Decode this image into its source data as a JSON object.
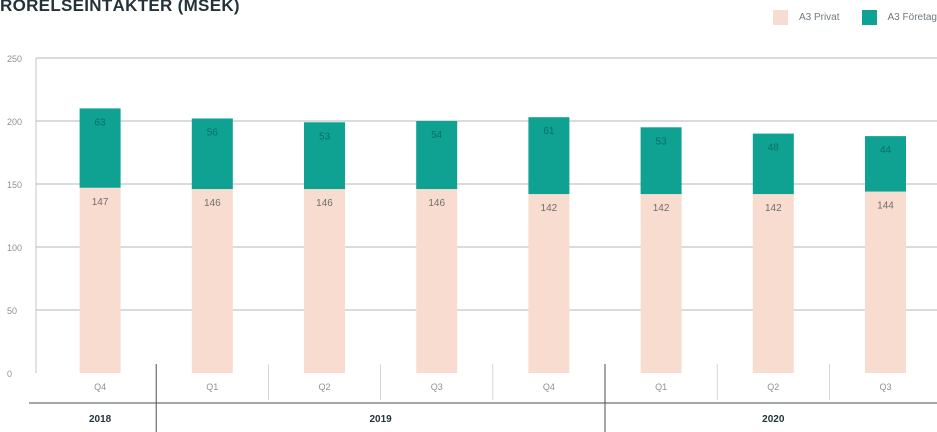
{
  "chart_data": {
    "type": "bar",
    "stacked": true,
    "title": "RÖRELSEINTÄKTER (MSEK)",
    "categories": [
      "Q4",
      "Q1",
      "Q2",
      "Q3",
      "Q4",
      "Q1",
      "Q2",
      "Q3"
    ],
    "years": [
      {
        "label": "2018",
        "span": 1
      },
      {
        "label": "2019",
        "span": 4
      },
      {
        "label": "2020",
        "span": 3
      }
    ],
    "series": [
      {
        "name": "A3 Privat",
        "color": "#f8dccf",
        "values": [
          147,
          146,
          146,
          146,
          142,
          142,
          142,
          144
        ]
      },
      {
        "name": "A3 Företag",
        "color": "#0fa293",
        "values": [
          63,
          56,
          53,
          54,
          61,
          53,
          48,
          44
        ]
      }
    ],
    "ylim": [
      0,
      250
    ],
    "yticks": [
      0,
      50,
      100,
      150,
      200,
      250
    ],
    "grid": true,
    "legend_position": "top-right",
    "xlabel": "",
    "ylabel": ""
  }
}
